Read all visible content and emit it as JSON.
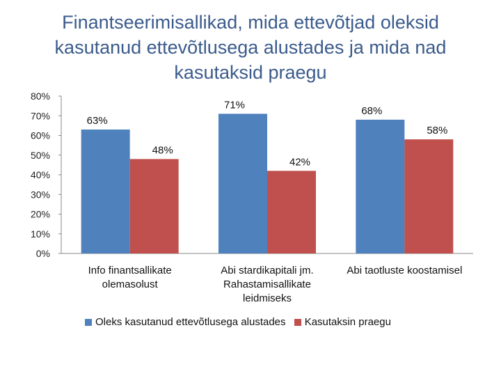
{
  "chart_data": {
    "type": "bar",
    "title_lines": [
      "Finantseerimisallikad, mida ettevõtjad oleksid",
      "kasutanud ettevõtlusega alustades ja mida nad",
      "kasutaksid praegu"
    ],
    "categories": [
      [
        "Info finantsallikate",
        "olemasolust"
      ],
      [
        "Abi stardikapitali jm.",
        "Rahastamisallikate",
        "leidmiseks"
      ],
      [
        "Abi taotluste koostamisel"
      ]
    ],
    "series": [
      {
        "name": "Oleks kasutanud ettevõtlusega alustades",
        "values": [
          63,
          71,
          68
        ],
        "labels": [
          "63%",
          "71%",
          "68%"
        ],
        "color": "#4f81bd"
      },
      {
        "name": "Kasutaksin praegu",
        "values": [
          48,
          42,
          58
        ],
        "labels": [
          "48%",
          "42%",
          "58%"
        ],
        "color": "#c0504d"
      }
    ],
    "ylim": [
      0,
      80
    ],
    "yticks": [
      0,
      10,
      20,
      30,
      40,
      50,
      60,
      70,
      80
    ],
    "ytick_labels": [
      "0%",
      "10%",
      "20%",
      "30%",
      "40%",
      "50%",
      "60%",
      "70%",
      "80%"
    ],
    "grid": false,
    "legend_position": "bottom"
  }
}
